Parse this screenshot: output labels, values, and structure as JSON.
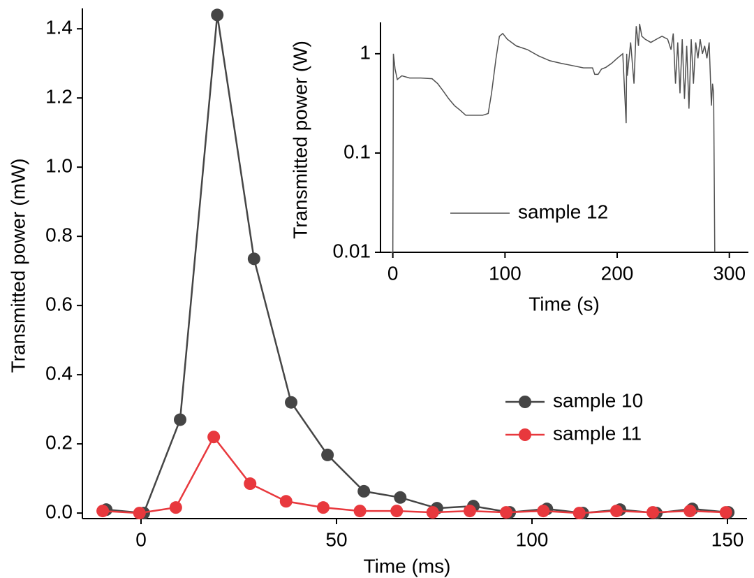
{
  "chart_data": [
    {
      "type": "line",
      "xlabel": "Time (ms)",
      "ylabel": "Transmitted power (mW)",
      "xlim": [
        -15,
        155
      ],
      "ylim": [
        -0.016,
        1.459
      ],
      "xticks": [
        0,
        50,
        100,
        150
      ],
      "yticks": [
        {
          "value": 0,
          "label": "0.0"
        },
        0.2,
        0.4,
        0.6,
        0.8,
        {
          "value": 1,
          "label": "1.0"
        },
        1.2,
        1.4
      ],
      "markers": true,
      "legend": "right",
      "series": [
        {
          "name": "sample 10",
          "color": "#454545",
          "x": [
            -8.9,
            0.7,
            10,
            19.5,
            28.9,
            38.4,
            47.7,
            57,
            66.3,
            75.7,
            85,
            94.3,
            103.8,
            113,
            122.5,
            131.8,
            141,
            150.2
          ],
          "values": [
            0.01,
            0.0,
            0.27,
            1.44,
            0.735,
            0.32,
            0.168,
            0.063,
            0.045,
            0.014,
            0.02,
            0.002,
            0.012,
            0.0,
            0.01,
            0.0,
            0.012,
            0.002
          ]
        },
        {
          "name": "sample 11",
          "color": "#e8383d",
          "x": [
            -9.8,
            -0.4,
            8.9,
            18.6,
            27.9,
            37.1,
            46.6,
            56,
            65.4,
            74.6,
            84.1,
            93.4,
            102.9,
            112.1,
            121.6,
            130.9,
            140.4,
            149.6
          ],
          "values": [
            0.006,
            0.0,
            0.016,
            0.22,
            0.085,
            0.034,
            0.016,
            0.006,
            0.006,
            0.002,
            0.006,
            0.002,
            0.006,
            0.0,
            0.006,
            0.002,
            0.006,
            0.002
          ]
        }
      ]
    },
    {
      "type": "line",
      "xlabel": "Time (s)",
      "ylabel": "Transmitted power (W)",
      "xlim": [
        -11,
        317
      ],
      "ylim": [
        0.01,
        2.07
      ],
      "log_y": true,
      "xticks": [
        0,
        100,
        200,
        300
      ],
      "yticks": [
        0.01,
        0.1,
        1
      ],
      "markers": false,
      "legend": "bottom",
      "series": [
        {
          "name": "sample 12",
          "color": "#505050",
          "x": [
            -2,
            0,
            0.5,
            2,
            4,
            8,
            15,
            25,
            35,
            40,
            45,
            50,
            55,
            60,
            65,
            70,
            80,
            85,
            88,
            92,
            95,
            98,
            102,
            110,
            120,
            130,
            140,
            150,
            160,
            170,
            178,
            180,
            183,
            186,
            190,
            195,
            200,
            205,
            208,
            208.5,
            209,
            212,
            215,
            217,
            219,
            220,
            222,
            225,
            230,
            235,
            240,
            245,
            248,
            250,
            252,
            254,
            256,
            258,
            260,
            262,
            264,
            266,
            268,
            270,
            272,
            274,
            276,
            278,
            280,
            282,
            284,
            285,
            286,
            287
          ],
          "values": [
            0.01,
            0.01,
            1.0,
            0.7,
            0.55,
            0.6,
            0.57,
            0.57,
            0.56,
            0.5,
            0.42,
            0.35,
            0.3,
            0.27,
            0.24,
            0.24,
            0.24,
            0.25,
            0.4,
            0.9,
            1.5,
            1.6,
            1.4,
            1.2,
            1.1,
            0.95,
            0.85,
            0.8,
            0.76,
            0.72,
            0.72,
            0.62,
            0.62,
            0.7,
            0.73,
            0.8,
            0.9,
            1.0,
            0.2,
            1.0,
            0.6,
            1.3,
            0.5,
            1.9,
            1.2,
            2.0,
            1.5,
            1.4,
            1.3,
            1.4,
            1.5,
            1.4,
            1.1,
            1.6,
            0.5,
            1.3,
            0.4,
            1.4,
            0.35,
            1.2,
            0.28,
            1.4,
            0.5,
            1.3,
            0.9,
            1.4,
            1.0,
            1.2,
            0.9,
            1.3,
            0.3,
            0.5,
            0.4,
            0.01
          ]
        }
      ]
    }
  ]
}
